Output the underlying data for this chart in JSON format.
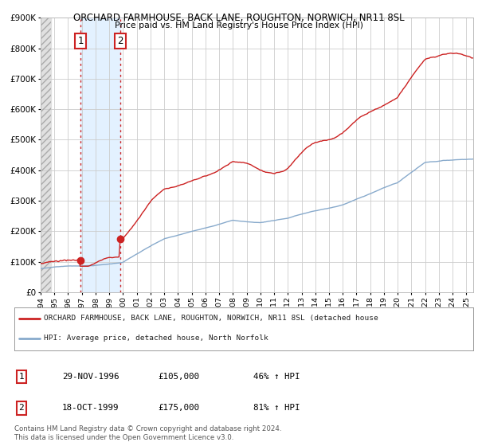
{
  "title": "ORCHARD FARMHOUSE, BACK LANE, ROUGHTON, NORWICH, NR11 8SL",
  "subtitle": "Price paid vs. HM Land Registry's House Price Index (HPI)",
  "ylim": [
    0,
    900000
  ],
  "yticks": [
    0,
    100000,
    200000,
    300000,
    400000,
    500000,
    600000,
    700000,
    800000,
    900000
  ],
  "ytick_labels": [
    "£0",
    "£100K",
    "£200K",
    "£300K",
    "£400K",
    "£500K",
    "£600K",
    "£700K",
    "£800K",
    "£900K"
  ],
  "xlim_start": 1994.0,
  "xlim_end": 2025.5,
  "red_line_color": "#cc2222",
  "blue_line_color": "#88aacc",
  "sale1_x": 1996.91,
  "sale1_y": 105000,
  "sale2_x": 1999.79,
  "sale2_y": 175000,
  "sale1_label": "1",
  "sale2_label": "2",
  "legend_line1": "ORCHARD FARMHOUSE, BACK LANE, ROUGHTON, NORWICH, NR11 8SL (detached house",
  "legend_line2": "HPI: Average price, detached house, North Norfolk",
  "table_row1_num": "1",
  "table_row1_date": "29-NOV-1996",
  "table_row1_price": "£105,000",
  "table_row1_hpi": "46% ↑ HPI",
  "table_row2_num": "2",
  "table_row2_date": "18-OCT-1999",
  "table_row2_price": "£175,000",
  "table_row2_hpi": "81% ↑ HPI",
  "footnote1": "Contains HM Land Registry data © Crown copyright and database right 2024.",
  "footnote2": "This data is licensed under the Open Government Licence v3.0.",
  "background_color": "#ffffff",
  "plot_bg_color": "#ffffff",
  "grid_color": "#cccccc",
  "shade_region_color": "#ddeeff",
  "hatch_end": 1994.75
}
